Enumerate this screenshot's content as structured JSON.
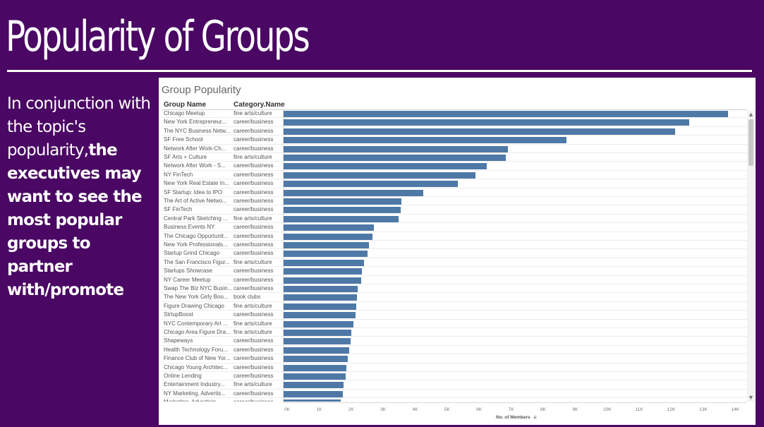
{
  "slide": {
    "title": "Popularity of Groups",
    "body_plain": "In conjunction with the topic's popularity,",
    "body_bold": "the executives may want to see the most popular groups to partner with/promote"
  },
  "colors": {
    "background": "#4a0763",
    "bar": "#4e79a7"
  },
  "icons": [
    "sort-descending-icon",
    "scroll-up-arrow-icon",
    "scroll-down-arrow-icon"
  ],
  "chart_data": {
    "type": "bar",
    "orientation": "horizontal",
    "title": "Group Popularity",
    "row_headers": [
      "Group Name",
      "Category.Name"
    ],
    "xlabel": "No. of Members",
    "xlim": [
      0,
      14500
    ],
    "x_ticks": [
      "0K",
      "1K",
      "2K",
      "3K",
      "4K",
      "5K",
      "6K",
      "7K",
      "8K",
      "9K",
      "10K",
      "11K",
      "12K",
      "13K",
      "14K"
    ],
    "rows": [
      {
        "name": "Chicago Meetup",
        "category": "fine arts/culture",
        "value": 13900
      },
      {
        "name": "New York Entrepreneur...",
        "category": "career/business",
        "value": 12700
      },
      {
        "name": "The NYC Business Netw...",
        "category": "career/business",
        "value": 12250
      },
      {
        "name": "SF Free School",
        "category": "career/business",
        "value": 8850
      },
      {
        "name": "Network After Work-Ch...",
        "category": "career/business",
        "value": 7020
      },
      {
        "name": "SF Arts + Culture",
        "category": "fine arts/culture",
        "value": 6960
      },
      {
        "name": "Network After Work - S...",
        "category": "career/business",
        "value": 6370
      },
      {
        "name": "NY FinTech",
        "category": "career/business",
        "value": 6020
      },
      {
        "name": "New York Real Estate In...",
        "category": "career/business",
        "value": 5470
      },
      {
        "name": "SF Startup: Idea to IPO",
        "category": "career/business",
        "value": 4390
      },
      {
        "name": "The Art of Active Netwo...",
        "category": "career/business",
        "value": 3700
      },
      {
        "name": "SF FinTech",
        "category": "career/business",
        "value": 3670
      },
      {
        "name": "Central Park Sketching ...",
        "category": "fine arts/culture",
        "value": 3620
      },
      {
        "name": "Business Events NY",
        "category": "career/business",
        "value": 2840
      },
      {
        "name": "The Chicago Opportunit...",
        "category": "career/business",
        "value": 2800
      },
      {
        "name": "New York Professionals...",
        "category": "career/business",
        "value": 2680
      },
      {
        "name": "Startup Grind Chicago",
        "category": "career/business",
        "value": 2640
      },
      {
        "name": "The San Francisco Figur...",
        "category": "fine arts/culture",
        "value": 2530
      },
      {
        "name": "Startups Showcase",
        "category": "career/business",
        "value": 2470
      },
      {
        "name": "NY Career Meetup",
        "category": "career/business",
        "value": 2450
      },
      {
        "name": "Swap The Biz NYC Busin...",
        "category": "career/business",
        "value": 2330
      },
      {
        "name": "The New York Girly Boo...",
        "category": "book clubs",
        "value": 2310
      },
      {
        "name": "Figure Drawing Chicago",
        "category": "fine arts/culture",
        "value": 2290
      },
      {
        "name": "StrtupBoost",
        "category": "career/business",
        "value": 2270
      },
      {
        "name": "NYC Contemporary Art ...",
        "category": "fine arts/culture",
        "value": 2200
      },
      {
        "name": "Chicago Area Figure Dra...",
        "category": "fine arts/culture",
        "value": 2140
      },
      {
        "name": "Shapeways",
        "category": "career/business",
        "value": 2120
      },
      {
        "name": "Health Technology Foru...",
        "category": "career/business",
        "value": 2070
      },
      {
        "name": "Finance Club of New Yor...",
        "category": "career/business",
        "value": 2030
      },
      {
        "name": "Chicago Young Architec...",
        "category": "career/business",
        "value": 1990
      },
      {
        "name": "Online Lending",
        "category": "career/business",
        "value": 1960
      },
      {
        "name": "Entertainment Industry...",
        "category": "fine arts/culture",
        "value": 1890
      },
      {
        "name": "NY Marketing, Advertis...",
        "category": "career/business",
        "value": 1870
      },
      {
        "name": "Marketing, Advertisin...",
        "category": "career/business",
        "value": 1800
      }
    ]
  }
}
